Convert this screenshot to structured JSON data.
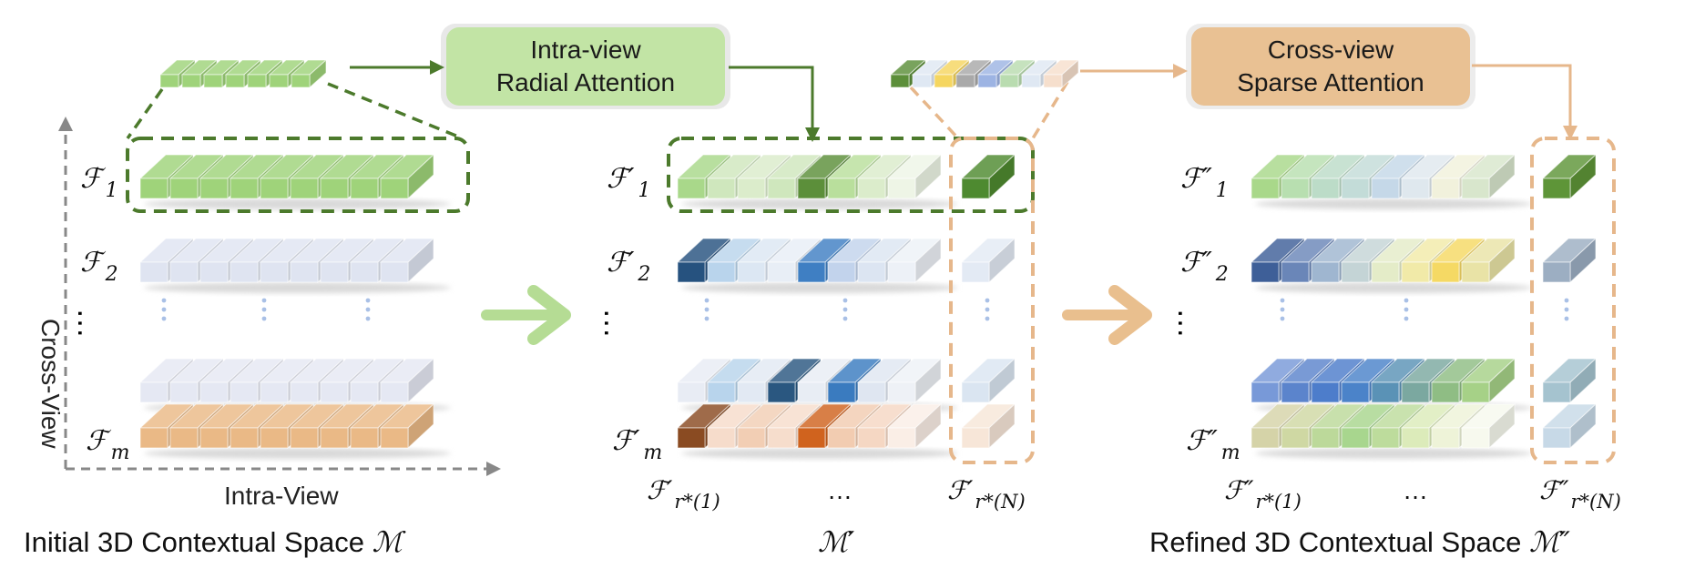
{
  "panels": {
    "initial": {
      "caption_text": "Initial 3D Contextual Space ",
      "caption_symbol": "ℳ",
      "row_labels": [
        {
          "main": "ℱ",
          "sub": "1"
        },
        {
          "main": "ℱ",
          "sub": "2"
        },
        {
          "main": "ℱ",
          "sub": "m"
        }
      ],
      "axis_vertical": "Cross-View",
      "axis_horizontal": "Intra-View"
    },
    "middle": {
      "caption_symbol": "ℳ′",
      "row_labels": [
        {
          "main": "ℱ′",
          "sub": "1"
        },
        {
          "main": "ℱ′",
          "sub": "2"
        },
        {
          "main": "ℱ′",
          "sub": "m"
        }
      ],
      "col_labels": [
        {
          "main": "ℱ′",
          "sub": "r*(1)"
        },
        {
          "main": "…",
          "sub": ""
        },
        {
          "main": "ℱ′",
          "sub": "r*(N)"
        }
      ]
    },
    "refined": {
      "caption_text": "Refined 3D Contextual Space ",
      "caption_symbol": "ℳ″",
      "row_labels": [
        {
          "main": "ℱ″",
          "sub": "1"
        },
        {
          "main": "ℱ″",
          "sub": "2"
        },
        {
          "main": "ℱ″",
          "sub": "m"
        }
      ],
      "col_labels": [
        {
          "main": "ℱ″",
          "sub": "r*(1)"
        },
        {
          "main": "…",
          "sub": ""
        },
        {
          "main": "ℱ″",
          "sub": "r*(N)"
        }
      ]
    }
  },
  "modules": {
    "intra": {
      "line1": "Intra-view",
      "line2": "Radial Attention"
    },
    "cross": {
      "line1": "Cross-view",
      "line2": "Sparse Attention"
    }
  },
  "colors": {
    "intra_box": "#c2e4a5",
    "cross_box": "#e9c193",
    "green_dash": "#4c7a2c",
    "orange_dash": "#e6b78b",
    "green_arrow": "#b5dc94",
    "orange_arrow": "#e9bf8e"
  }
}
